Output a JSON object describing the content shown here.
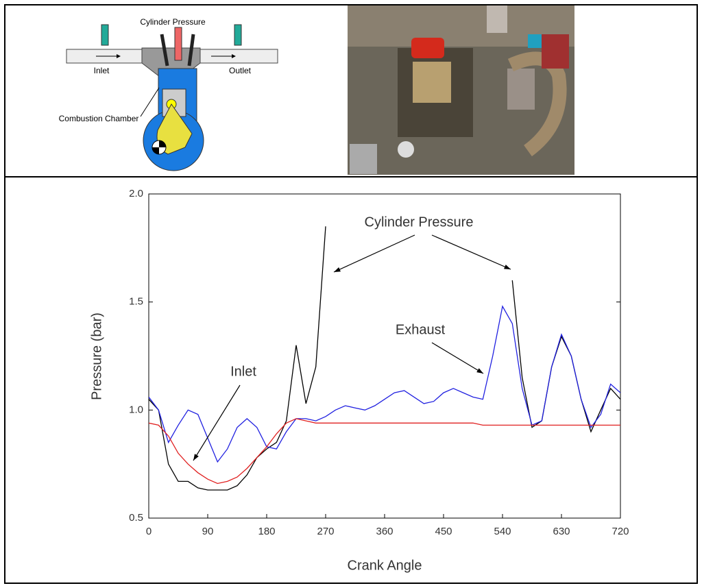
{
  "diagram": {
    "labels": [
      "Cylinder Pressure",
      "Inlet",
      "Outlet",
      "Combustion Chamber"
    ]
  },
  "chart_data": {
    "type": "line",
    "x_label": "Crank Angle",
    "y_label": "Pressure (bar)",
    "xlim": [
      0,
      720
    ],
    "xticks": [
      0,
      90,
      180,
      270,
      360,
      450,
      540,
      630,
      720
    ],
    "ylim": [
      0.5,
      2.0
    ],
    "yticks": [
      0.5,
      1.5,
      {
        "value": 1,
        "label": "1.0"
      },
      {
        "value": 2,
        "label": "2.0"
      }
    ],
    "annotations": [
      {
        "text": "Cylinder Pressure"
      },
      {
        "text": "Exhaust"
      },
      {
        "text": "Inlet"
      }
    ],
    "x": [
      0,
      15,
      30,
      45,
      60,
      75,
      90,
      105,
      120,
      135,
      150,
      165,
      180,
      195,
      210,
      225,
      240,
      255,
      270,
      285,
      300,
      315,
      330,
      345,
      360,
      375,
      390,
      405,
      420,
      435,
      450,
      465,
      480,
      495,
      510,
      525,
      540,
      555,
      570,
      585,
      600,
      615,
      630,
      645,
      660,
      675,
      690,
      705,
      720
    ],
    "series": [
      {
        "name": "Cylinder Pressure",
        "color": "#000000",
        "values": [
          1.05,
          1.0,
          0.75,
          0.67,
          0.67,
          0.64,
          0.63,
          0.63,
          0.63,
          0.65,
          0.7,
          0.78,
          0.82,
          0.85,
          0.95,
          1.3,
          1.03,
          1.2,
          1.85,
          null,
          null,
          null,
          null,
          null,
          null,
          null,
          null,
          null,
          null,
          null,
          null,
          null,
          null,
          null,
          null,
          null,
          null,
          1.6,
          1.15,
          0.92,
          0.95,
          1.2,
          1.34,
          1.25,
          1.05,
          0.9,
          1.0,
          1.1,
          1.05
        ]
      },
      {
        "name": "Exhaust",
        "color": "#2020e0",
        "values": [
          1.06,
          1.0,
          0.85,
          0.93,
          1.0,
          0.98,
          0.87,
          0.76,
          0.82,
          0.92,
          0.96,
          0.92,
          0.83,
          0.82,
          0.9,
          0.96,
          0.96,
          0.95,
          0.97,
          1.0,
          1.02,
          1.01,
          1.0,
          1.02,
          1.05,
          1.08,
          1.09,
          1.06,
          1.03,
          1.04,
          1.08,
          1.1,
          1.08,
          1.06,
          1.05,
          1.25,
          1.48,
          1.4,
          1.1,
          0.93,
          0.95,
          1.2,
          1.35,
          1.25,
          1.05,
          0.92,
          0.98,
          1.12,
          1.08
        ]
      },
      {
        "name": "Inlet",
        "color": "#e02020",
        "values": [
          0.94,
          0.93,
          0.88,
          0.8,
          0.75,
          0.71,
          0.68,
          0.66,
          0.67,
          0.69,
          0.73,
          0.78,
          0.83,
          0.89,
          0.94,
          0.96,
          0.95,
          0.94,
          0.94,
          0.94,
          0.94,
          0.94,
          0.94,
          0.94,
          0.94,
          0.94,
          0.94,
          0.94,
          0.94,
          0.94,
          0.94,
          0.94,
          0.94,
          0.94,
          0.93,
          0.93,
          0.93,
          0.93,
          0.93,
          0.93,
          0.93,
          0.93,
          0.93,
          0.93,
          0.93,
          0.93,
          0.93,
          0.93,
          0.93
        ]
      }
    ]
  }
}
